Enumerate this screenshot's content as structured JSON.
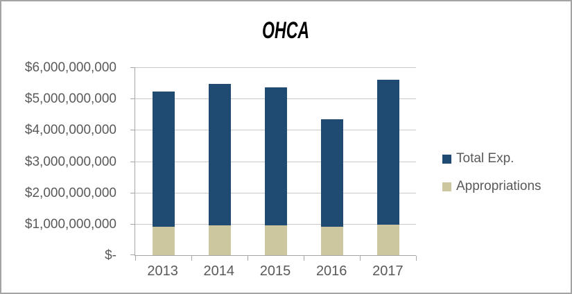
{
  "frame": {
    "background": "#FFFFFF",
    "border_color": "#A3A3A3"
  },
  "chart_data": {
    "type": "bar",
    "stacked": true,
    "title": "OHCA",
    "categories": [
      "2013",
      "2014",
      "2015",
      "2016",
      "2017"
    ],
    "series": [
      {
        "name": "Total Exp.",
        "color": "#1F4B73",
        "values": [
          4330000000,
          4510000000,
          4410000000,
          3440000000,
          4630000000
        ]
      },
      {
        "name": "Appropriations",
        "color": "#CDC7A0",
        "values": [
          900000000,
          960000000,
          950000000,
          900000000,
          970000000
        ]
      }
    ],
    "stack_order_bottom_to_top": [
      "Appropriations",
      "Total Exp."
    ],
    "stack_totals": [
      5230000000,
      5470000000,
      5360000000,
      4340000000,
      5600000000
    ],
    "ylim": [
      0,
      6000000000
    ],
    "y_ticks": [
      {
        "value": 0,
        "label": "$-"
      },
      {
        "value": 1000000000,
        "label": "$1,000,000,000"
      },
      {
        "value": 2000000000,
        "label": "$2,000,000,000"
      },
      {
        "value": 3000000000,
        "label": "$3,000,000,000"
      },
      {
        "value": 4000000000,
        "label": "$4,000,000,000"
      },
      {
        "value": 5000000000,
        "label": "$5,000,000,000"
      },
      {
        "value": 6000000000,
        "label": "$6,000,000,000"
      }
    ],
    "grid": true,
    "legend_position": "right",
    "colors": {
      "axis": "#A6A6A6",
      "gridline": "#C8C8C8",
      "text": "#595959",
      "title_text": "#000000"
    }
  }
}
